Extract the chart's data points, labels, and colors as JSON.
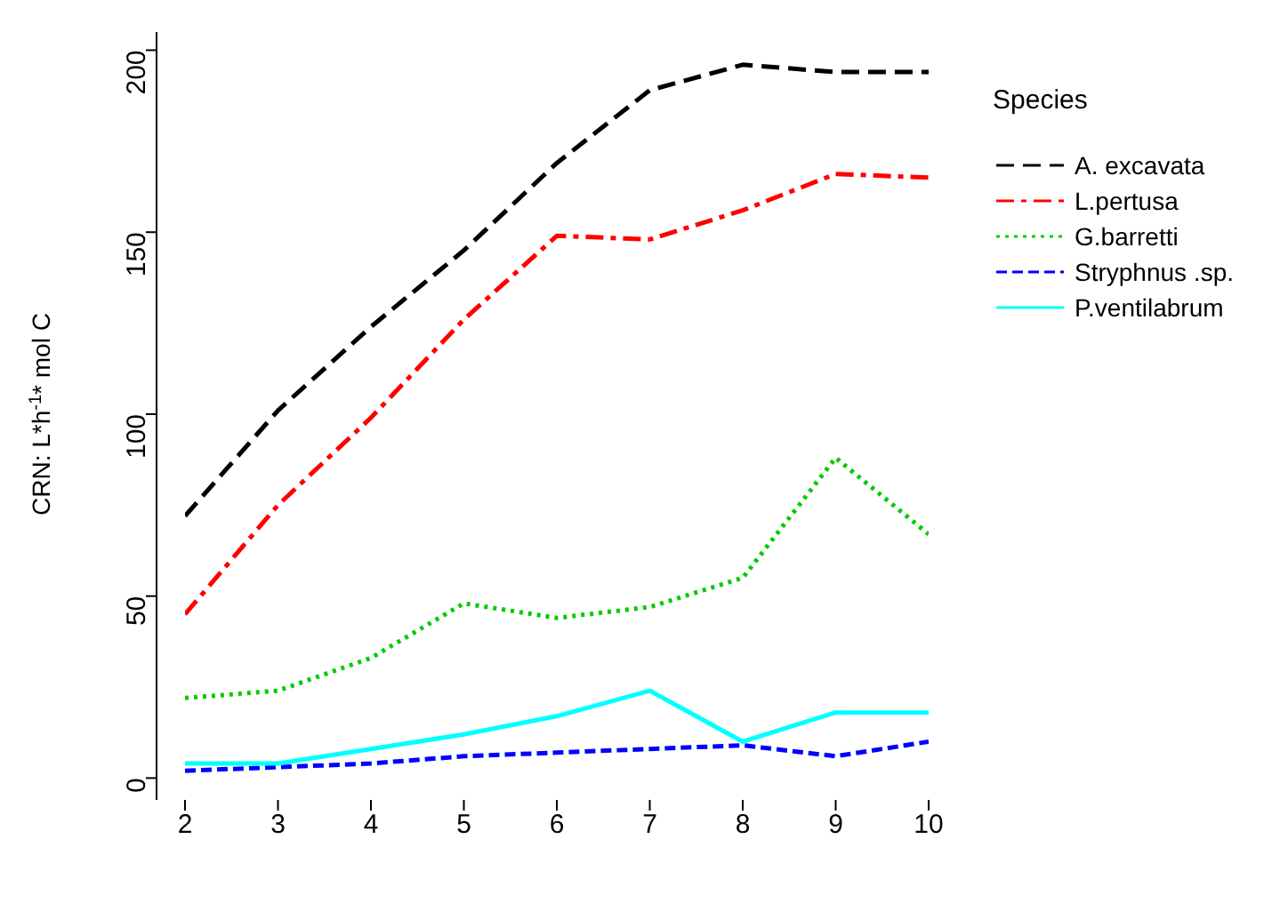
{
  "chart_data": {
    "type": "line",
    "ylabel": "CRN: L*h$^{-1}$* mol C",
    "legend_title": "Species",
    "legend": "right",
    "grid": false,
    "marker": "none",
    "x": [
      2,
      3,
      4,
      5,
      6,
      7,
      8,
      9,
      10
    ],
    "xlim": [
      2,
      10
    ],
    "xticks": [
      2,
      3,
      4,
      5,
      6,
      7,
      8,
      9,
      10
    ],
    "ylim": [
      -6,
      205
    ],
    "yticks": [
      0,
      50,
      100,
      150,
      200
    ],
    "series": [
      {
        "name": "A. excavata",
        "color": "#000000",
        "line_style": "dashed",
        "values": [
          72,
          101,
          124,
          145,
          169,
          189,
          196,
          194,
          194
        ]
      },
      {
        "name": "L.pertusa",
        "color": "#ff0000",
        "line_style": "dashed",
        "values": [
          45,
          75,
          99,
          126,
          149,
          148,
          156,
          166,
          165
        ]
      },
      {
        "name": "G.barretti",
        "color": "#00cd00",
        "line_style": "dotted",
        "values": [
          22,
          24,
          33,
          48,
          44,
          47,
          55,
          88,
          67
        ]
      },
      {
        "name": "Stryphnus .sp.",
        "color": "#0000ff",
        "line_style": "dashed",
        "values": [
          2,
          3,
          4,
          6,
          7,
          8,
          9,
          6,
          10
        ]
      },
      {
        "name": "P.ventilabrum",
        "color": "#00ffff",
        "line_style": "solid",
        "values": [
          4,
          4,
          8,
          12,
          17,
          24,
          10,
          18,
          18
        ]
      }
    ]
  }
}
